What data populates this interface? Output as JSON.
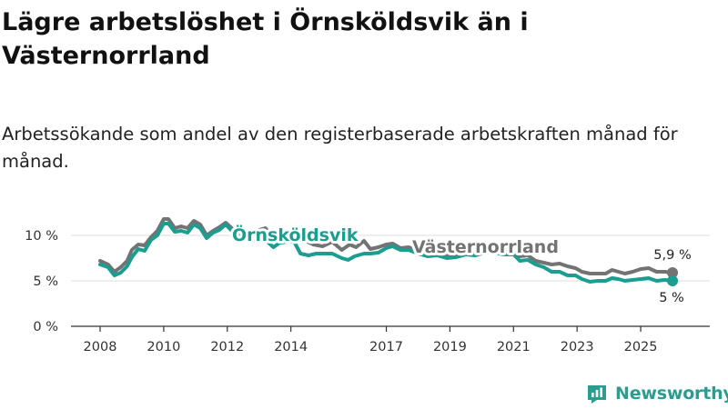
{
  "title": "Lägre arbetslöshet i Örnsköldsvik än i Västernorrland",
  "subtitle": "Arbetssökande som andel av den registerbaserade arbetskraften månad för månad.",
  "source": {
    "brand": "Newsworthy"
  },
  "colors": {
    "ornskoldsvik": "#1a9e8f",
    "vasternorrland": "#737373",
    "axis": "#333333",
    "grid": "#dddddd",
    "brand": "#2a9d8f"
  },
  "chart_data": {
    "type": "line",
    "title": "Lägre arbetslöshet i Örnsköldsvik än i Västernorrland",
    "xlabel": "",
    "ylabel": "",
    "xlim": [
      2008.0,
      2026.2
    ],
    "ylim": [
      0,
      12
    ],
    "grid": true,
    "x_ticks": [
      2008,
      2010,
      2012,
      2014,
      2017,
      2019,
      2021,
      2023,
      2025
    ],
    "y_ticks": [
      {
        "value": 0,
        "label": "0 %"
      },
      {
        "value": 5,
        "label": "5 %"
      },
      {
        "value": 10,
        "label": "10 %"
      }
    ],
    "series": [
      {
        "name": "Västernorrland",
        "label": "Västernorrland",
        "end_label": "5,9 %",
        "color": "#737373",
        "points": [
          [
            2008.0,
            7.2
          ],
          [
            2008.25,
            6.8
          ],
          [
            2008.45,
            6.0
          ],
          [
            2008.65,
            6.5
          ],
          [
            2008.85,
            7.2
          ],
          [
            2009.0,
            8.4
          ],
          [
            2009.2,
            9.0
          ],
          [
            2009.4,
            8.9
          ],
          [
            2009.6,
            9.8
          ],
          [
            2009.8,
            10.5
          ],
          [
            2010.0,
            11.8
          ],
          [
            2010.15,
            11.8
          ],
          [
            2010.35,
            10.8
          ],
          [
            2010.55,
            11.0
          ],
          [
            2010.75,
            10.8
          ],
          [
            2010.95,
            11.6
          ],
          [
            2011.15,
            11.2
          ],
          [
            2011.35,
            10.0
          ],
          [
            2011.55,
            10.5
          ],
          [
            2011.75,
            10.9
          ],
          [
            2011.95,
            11.4
          ],
          [
            2012.2,
            10.6
          ],
          [
            2012.5,
            10.2
          ],
          [
            2012.8,
            10.0
          ],
          [
            2013.0,
            10.6
          ],
          [
            2013.2,
            10.8
          ],
          [
            2013.45,
            9.6
          ],
          [
            2013.65,
            10.2
          ],
          [
            2013.9,
            10.1
          ],
          [
            2014.1,
            9.9
          ],
          [
            2014.4,
            9.5
          ],
          [
            2014.7,
            9.0
          ],
          [
            2015.0,
            8.8
          ],
          [
            2015.3,
            9.3
          ],
          [
            2015.6,
            8.4
          ],
          [
            2015.85,
            9.0
          ],
          [
            2016.05,
            8.7
          ],
          [
            2016.3,
            9.4
          ],
          [
            2016.5,
            8.5
          ],
          [
            2016.75,
            8.7
          ],
          [
            2017.0,
            9.0
          ],
          [
            2017.2,
            9.1
          ],
          [
            2017.45,
            8.6
          ],
          [
            2017.7,
            8.7
          ],
          [
            2018.0,
            8.3
          ],
          [
            2018.3,
            8.0
          ],
          [
            2018.6,
            8.1
          ],
          [
            2018.9,
            7.9
          ],
          [
            2019.2,
            7.9
          ],
          [
            2019.5,
            8.1
          ],
          [
            2019.8,
            8.0
          ],
          [
            2020.1,
            8.4
          ],
          [
            2020.4,
            8.4
          ],
          [
            2020.7,
            8.2
          ],
          [
            2021.0,
            8.2
          ],
          [
            2021.2,
            7.7
          ],
          [
            2021.45,
            7.8
          ],
          [
            2021.7,
            7.2
          ],
          [
            2021.95,
            7.0
          ],
          [
            2022.2,
            6.8
          ],
          [
            2022.45,
            6.9
          ],
          [
            2022.7,
            6.6
          ],
          [
            2022.95,
            6.4
          ],
          [
            2023.15,
            6.0
          ],
          [
            2023.4,
            5.8
          ],
          [
            2023.65,
            5.8
          ],
          [
            2023.9,
            5.8
          ],
          [
            2024.1,
            6.2
          ],
          [
            2024.3,
            6.0
          ],
          [
            2024.5,
            5.8
          ],
          [
            2024.75,
            6.0
          ],
          [
            2025.0,
            6.3
          ],
          [
            2025.25,
            6.4
          ],
          [
            2025.5,
            6.0
          ],
          [
            2025.75,
            6.0
          ],
          [
            2026.0,
            5.9
          ]
        ]
      },
      {
        "name": "Örnsköldsvik",
        "label": "Örnsköldsvik",
        "end_label": "5 %",
        "color": "#1a9e8f",
        "points": [
          [
            2008.0,
            6.8
          ],
          [
            2008.25,
            6.5
          ],
          [
            2008.45,
            5.6
          ],
          [
            2008.65,
            5.9
          ],
          [
            2008.85,
            6.6
          ],
          [
            2009.0,
            7.6
          ],
          [
            2009.2,
            8.5
          ],
          [
            2009.4,
            8.3
          ],
          [
            2009.6,
            9.5
          ],
          [
            2009.8,
            10.0
          ],
          [
            2010.0,
            11.3
          ],
          [
            2010.15,
            11.3
          ],
          [
            2010.35,
            10.4
          ],
          [
            2010.55,
            10.5
          ],
          [
            2010.75,
            10.3
          ],
          [
            2010.95,
            11.2
          ],
          [
            2011.15,
            10.8
          ],
          [
            2011.35,
            9.7
          ],
          [
            2011.55,
            10.3
          ],
          [
            2011.75,
            10.6
          ],
          [
            2011.95,
            11.2
          ],
          [
            2012.2,
            10.3
          ],
          [
            2012.5,
            9.7
          ],
          [
            2012.8,
            9.5
          ],
          [
            2013.0,
            9.3
          ],
          [
            2013.2,
            9.5
          ],
          [
            2013.45,
            8.7
          ],
          [
            2013.65,
            9.2
          ],
          [
            2013.9,
            9.3
          ],
          [
            2014.1,
            9.3
          ],
          [
            2014.3,
            8.0
          ],
          [
            2014.55,
            7.8
          ],
          [
            2014.8,
            8.0
          ],
          [
            2015.0,
            8.0
          ],
          [
            2015.3,
            8.0
          ],
          [
            2015.6,
            7.5
          ],
          [
            2015.8,
            7.3
          ],
          [
            2016.0,
            7.7
          ],
          [
            2016.3,
            8.0
          ],
          [
            2016.5,
            8.0
          ],
          [
            2016.75,
            8.1
          ],
          [
            2017.0,
            8.6
          ],
          [
            2017.2,
            8.8
          ],
          [
            2017.45,
            8.4
          ],
          [
            2017.7,
            8.4
          ],
          [
            2018.0,
            8.0
          ],
          [
            2018.3,
            7.7
          ],
          [
            2018.6,
            7.8
          ],
          [
            2018.9,
            7.5
          ],
          [
            2019.2,
            7.6
          ],
          [
            2019.5,
            7.9
          ],
          [
            2019.8,
            7.8
          ],
          [
            2020.1,
            8.1
          ],
          [
            2020.4,
            8.1
          ],
          [
            2020.7,
            7.9
          ],
          [
            2021.0,
            7.9
          ],
          [
            2021.2,
            7.2
          ],
          [
            2021.45,
            7.3
          ],
          [
            2021.7,
            6.8
          ],
          [
            2021.95,
            6.5
          ],
          [
            2022.2,
            6.0
          ],
          [
            2022.45,
            6.0
          ],
          [
            2022.7,
            5.6
          ],
          [
            2022.95,
            5.6
          ],
          [
            2023.15,
            5.2
          ],
          [
            2023.4,
            4.9
          ],
          [
            2023.65,
            5.0
          ],
          [
            2023.9,
            5.0
          ],
          [
            2024.1,
            5.3
          ],
          [
            2024.3,
            5.2
          ],
          [
            2024.5,
            5.0
          ],
          [
            2024.75,
            5.1
          ],
          [
            2025.0,
            5.2
          ],
          [
            2025.25,
            5.3
          ],
          [
            2025.5,
            5.0
          ],
          [
            2025.75,
            5.1
          ],
          [
            2026.0,
            5.0
          ]
        ]
      }
    ]
  }
}
